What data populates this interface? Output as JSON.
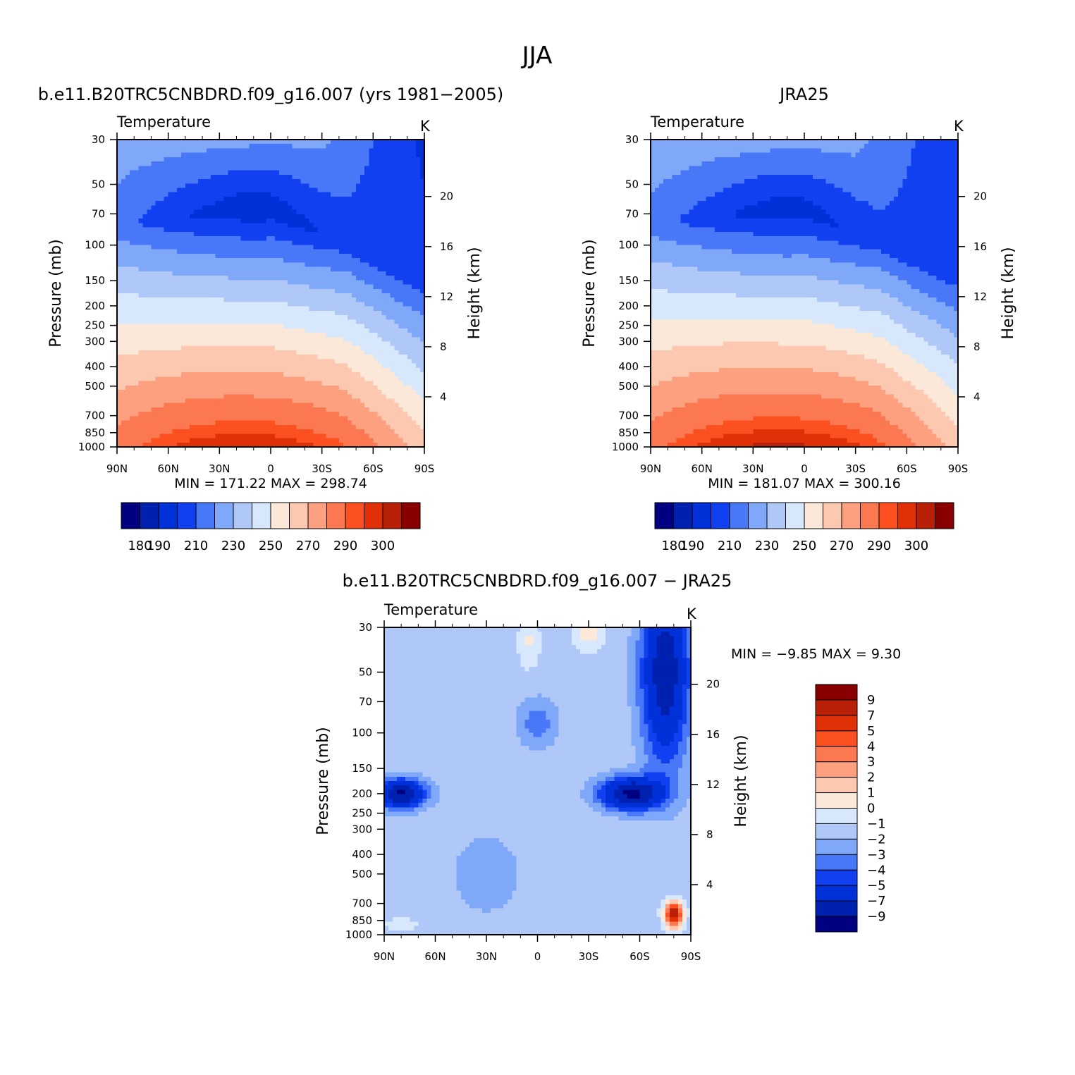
{
  "figure": {
    "title": "JJA"
  },
  "levels_main": [
    180,
    190,
    200,
    210,
    220,
    230,
    240,
    250,
    260,
    270,
    280,
    290,
    295,
    300
  ],
  "colors_main": [
    "#000080",
    "#0020b0",
    "#0030d8",
    "#1040f0",
    "#4878f8",
    "#80a8f8",
    "#b0c8f8",
    "#d8e8fc",
    "#fce8d8",
    "#fcc8b0",
    "#fca080",
    "#fc7850",
    "#fc5020",
    "#e03008",
    "#b82008",
    "#880000"
  ],
  "colorbar_main_labels": [
    "180",
    "190",
    "210",
    "230",
    "250",
    "270",
    "290",
    "300"
  ],
  "levels_diff": [
    -9,
    -7,
    -5,
    -4,
    -3,
    -2,
    -1,
    0,
    1,
    2,
    3,
    4,
    5,
    7,
    9
  ],
  "colors_diff": [
    "#000080",
    "#0020b0",
    "#0030d8",
    "#1040f0",
    "#4878f8",
    "#80a8f8",
    "#b0c8f8",
    "#d8e8fc",
    "#fce8d8",
    "#fcc8b0",
    "#fca080",
    "#fc7850",
    "#fc5020",
    "#e03008",
    "#b82008",
    "#880000"
  ],
  "colorbar_diff_labels": [
    "9",
    "7",
    "5",
    "4",
    "3",
    "2",
    "1",
    "0",
    "−1",
    "−2",
    "−3",
    "−4",
    "−5",
    "−7",
    "−9"
  ],
  "chart_data": [
    {
      "type": "heatmap",
      "title": "b.e11.B20TRC5CNBDRD.f09_g16.007 (yrs 1981−2005)",
      "left_label": "Temperature",
      "units": "K",
      "xlabel": "",
      "ylabel": "Pressure (mb)",
      "ylabel_right": "Height (km)",
      "x_ticks": [
        "90N",
        "60N",
        "30N",
        "0",
        "30S",
        "60S",
        "90S"
      ],
      "y_ticks": [
        "30",
        "50",
        "70",
        "100",
        "150",
        "200",
        "250",
        "300",
        "400",
        "500",
        "700",
        "850",
        "1000"
      ],
      "height_ticks": [
        "4",
        "8",
        "12",
        "16",
        "20"
      ],
      "min_max": "MIN =  171.22   MAX =  298.74",
      "field": "model"
    },
    {
      "type": "heatmap",
      "title": "JRA25",
      "left_label": "Temperature",
      "units": "K",
      "xlabel": "",
      "ylabel": "Pressure (mb)",
      "ylabel_right": "Height (km)",
      "x_ticks": [
        "90N",
        "60N",
        "30N",
        "0",
        "30S",
        "60S",
        "90S"
      ],
      "y_ticks": [
        "30",
        "50",
        "70",
        "100",
        "150",
        "200",
        "250",
        "300",
        "400",
        "500",
        "700",
        "850",
        "1000"
      ],
      "height_ticks": [
        "4",
        "8",
        "12",
        "16",
        "20"
      ],
      "min_max": "MIN =  181.07   MAX =  300.16",
      "field": "obs"
    },
    {
      "type": "heatmap",
      "title": "b.e11.B20TRC5CNBDRD.f09_g16.007 − JRA25",
      "left_label": "Temperature",
      "units": "K",
      "xlabel": "",
      "ylabel": "Pressure (mb)",
      "ylabel_right": "Height (km)",
      "x_ticks": [
        "90N",
        "60N",
        "30N",
        "0",
        "30S",
        "60S",
        "90S"
      ],
      "y_ticks": [
        "30",
        "50",
        "70",
        "100",
        "150",
        "200",
        "250",
        "300",
        "400",
        "500",
        "700",
        "850",
        "1000"
      ],
      "height_ticks": [
        "4",
        "8",
        "12",
        "16",
        "20"
      ],
      "min_max": "MIN =   −9.85    MAX =     9.30",
      "field": "diff"
    }
  ]
}
